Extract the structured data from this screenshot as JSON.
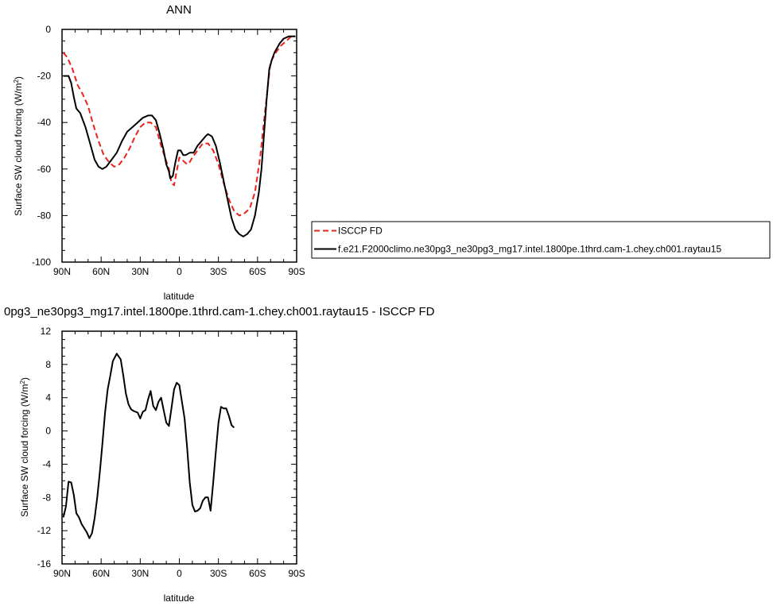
{
  "chart_data": [
    {
      "type": "line",
      "title": "ANN",
      "xlabel": "latitude",
      "ylabel_main": "Surface SW cloud forcing (W/m",
      "ylabel_sup": "2",
      "ylabel_tail": ")",
      "xlim": [
        90,
        -90
      ],
      "ylim": [
        -100,
        0
      ],
      "x_ticks": [
        {
          "value": 90,
          "label": "90N"
        },
        {
          "value": 60,
          "label": "60N"
        },
        {
          "value": 30,
          "label": "30N"
        },
        {
          "value": 0,
          "label": "0"
        },
        {
          "value": -30,
          "label": "30S"
        },
        {
          "value": -60,
          "label": "60S"
        },
        {
          "value": -90,
          "label": "90S"
        }
      ],
      "y_ticks": [
        {
          "value": 0,
          "label": "0"
        },
        {
          "value": -20,
          "label": "-20"
        },
        {
          "value": -40,
          "label": "-40"
        },
        {
          "value": -60,
          "label": "-60"
        },
        {
          "value": -80,
          "label": "-80"
        },
        {
          "value": -100,
          "label": "-100"
        }
      ],
      "legend": "right",
      "series": [
        {
          "name": "ISCCP FD",
          "color": "#e8231c",
          "dash": "dashed",
          "points": [
            [
              89,
              -10
            ],
            [
              86,
              -12
            ],
            [
              82,
              -17
            ],
            [
              78,
              -24
            ],
            [
              74,
              -28
            ],
            [
              70,
              -33
            ],
            [
              66,
              -41
            ],
            [
              62,
              -48
            ],
            [
              58,
              -54
            ],
            [
              54,
              -57
            ],
            [
              50,
              -59
            ],
            [
              46,
              -58
            ],
            [
              42,
              -55
            ],
            [
              38,
              -51
            ],
            [
              34,
              -46
            ],
            [
              30,
              -42
            ],
            [
              26,
              -40
            ],
            [
              22,
              -40
            ],
            [
              18,
              -42
            ],
            [
              14,
              -50
            ],
            [
              11,
              -55
            ],
            [
              8,
              -60
            ],
            [
              6,
              -66
            ],
            [
              4,
              -67
            ],
            [
              2,
              -61
            ],
            [
              0,
              -55
            ],
            [
              -2,
              -56
            ],
            [
              -4,
              -57
            ],
            [
              -6,
              -58
            ],
            [
              -8,
              -57
            ],
            [
              -10,
              -55
            ],
            [
              -14,
              -52
            ],
            [
              -18,
              -49
            ],
            [
              -22,
              -49
            ],
            [
              -26,
              -52
            ],
            [
              -30,
              -58
            ],
            [
              -34,
              -66
            ],
            [
              -38,
              -73
            ],
            [
              -42,
              -78
            ],
            [
              -46,
              -80
            ],
            [
              -50,
              -79
            ],
            [
              -54,
              -77
            ],
            [
              -58,
              -70
            ],
            [
              -62,
              -55
            ],
            [
              -66,
              -34
            ],
            [
              -70,
              -14
            ],
            [
              -74,
              -10
            ],
            [
              -78,
              -7
            ],
            [
              -82,
              -5
            ],
            [
              -86,
              -3
            ],
            [
              -89,
              -3
            ]
          ]
        },
        {
          "name": "f.e21.F2000climo.ne30pg3_ne30pg3_mg17.intel.1800pe.1thrd.cam-1.chey.ch001.raytau15",
          "color": "#000000",
          "dash": "solid",
          "points": [
            [
              89,
              -20
            ],
            [
              85,
              -20
            ],
            [
              83,
              -23
            ],
            [
              81,
              -29
            ],
            [
              79,
              -34
            ],
            [
              76,
              -36
            ],
            [
              72,
              -42
            ],
            [
              68,
              -50
            ],
            [
              65,
              -56
            ],
            [
              62,
              -59
            ],
            [
              59,
              -60
            ],
            [
              56,
              -59
            ],
            [
              52,
              -56
            ],
            [
              48,
              -53
            ],
            [
              44,
              -48
            ],
            [
              40,
              -44
            ],
            [
              36,
              -42
            ],
            [
              32,
              -40
            ],
            [
              28,
              -38
            ],
            [
              24,
              -37
            ],
            [
              21,
              -37
            ],
            [
              18,
              -39
            ],
            [
              15,
              -45
            ],
            [
              12,
              -52
            ],
            [
              10,
              -58
            ],
            [
              8,
              -61
            ],
            [
              7,
              -64
            ],
            [
              5,
              -63
            ],
            [
              3,
              -57
            ],
            [
              1,
              -52
            ],
            [
              -1,
              -52
            ],
            [
              -3,
              -54
            ],
            [
              -5,
              -54
            ],
            [
              -8,
              -53
            ],
            [
              -11,
              -53
            ],
            [
              -14,
              -50
            ],
            [
              -17,
              -48
            ],
            [
              -20,
              -46
            ],
            [
              -22,
              -45
            ],
            [
              -25,
              -46
            ],
            [
              -28,
              -50
            ],
            [
              -31,
              -57
            ],
            [
              -34,
              -65
            ],
            [
              -37,
              -73
            ],
            [
              -40,
              -81
            ],
            [
              -43,
              -86
            ],
            [
              -46,
              -88
            ],
            [
              -49,
              -89
            ],
            [
              -52,
              -88
            ],
            [
              -55,
              -86
            ],
            [
              -58,
              -80
            ],
            [
              -61,
              -70
            ],
            [
              -63,
              -60
            ],
            [
              -65,
              -45
            ],
            [
              -67,
              -30
            ],
            [
              -69,
              -17
            ],
            [
              -71,
              -13
            ],
            [
              -73,
              -10
            ],
            [
              -75,
              -8
            ],
            [
              -77,
              -6
            ],
            [
              -80,
              -4
            ],
            [
              -84,
              -3
            ],
            [
              -89,
              -3
            ]
          ]
        }
      ]
    },
    {
      "type": "line",
      "title": "0pg3_ne30pg3_mg17.intel.1800pe.1thrd.cam-1.chey.ch001.raytau15 - ISCCP FD",
      "xlabel": "latitude",
      "ylabel_main": "Surface SW cloud forcing (W/m",
      "ylabel_sup": "2",
      "ylabel_tail": ")",
      "xlim": [
        90,
        -90
      ],
      "ylim": [
        -16,
        12
      ],
      "x_ticks": [
        {
          "value": 90,
          "label": "90N"
        },
        {
          "value": 60,
          "label": "60N"
        },
        {
          "value": 30,
          "label": "30N"
        },
        {
          "value": 0,
          "label": "0"
        },
        {
          "value": -30,
          "label": "30S"
        },
        {
          "value": -60,
          "label": "60S"
        },
        {
          "value": -90,
          "label": "90S"
        }
      ],
      "y_ticks": [
        {
          "value": 12,
          "label": "12"
        },
        {
          "value": 8,
          "label": "8"
        },
        {
          "value": 4,
          "label": "4"
        },
        {
          "value": 0,
          "label": "0"
        },
        {
          "value": -4,
          "label": "-4"
        },
        {
          "value": -8,
          "label": "-8"
        },
        {
          "value": -12,
          "label": "-12"
        },
        {
          "value": -16,
          "label": "-16"
        }
      ],
      "series": [
        {
          "color": "#000000",
          "dash": "solid",
          "points": [
            [
              89,
              -10.4
            ],
            [
              87,
              -9.1
            ],
            [
              85,
              -6.1
            ],
            [
              83,
              -6.2
            ],
            [
              81,
              -7.7
            ],
            [
              79,
              -9.9
            ],
            [
              77,
              -10.4
            ],
            [
              75,
              -11.2
            ],
            [
              73,
              -11.7
            ],
            [
              71,
              -12.2
            ],
            [
              69,
              -12.9
            ],
            [
              67,
              -12.3
            ],
            [
              65,
              -10.5
            ],
            [
              63,
              -8.0
            ],
            [
              61,
              -5.0
            ],
            [
              59,
              -1.5
            ],
            [
              57,
              2.2
            ],
            [
              55,
              5.0
            ],
            [
              53,
              6.6
            ],
            [
              51,
              8.4
            ],
            [
              48,
              9.3
            ],
            [
              45,
              8.6
            ],
            [
              43,
              6.7
            ],
            [
              41,
              4.5
            ],
            [
              39,
              3.2
            ],
            [
              37,
              2.6
            ],
            [
              35,
              2.4
            ],
            [
              32,
              2.2
            ],
            [
              30,
              1.5
            ],
            [
              28,
              2.3
            ],
            [
              26,
              2.5
            ],
            [
              24,
              3.8
            ],
            [
              22,
              4.8
            ],
            [
              20,
              3.0
            ],
            [
              18,
              2.5
            ],
            [
              16,
              3.5
            ],
            [
              14,
              4.0
            ],
            [
              12,
              2.5
            ],
            [
              10,
              1.0
            ],
            [
              8,
              0.6
            ],
            [
              6,
              2.8
            ],
            [
              4,
              5.0
            ],
            [
              2,
              5.8
            ],
            [
              0,
              5.5
            ],
            [
              -2,
              3.5
            ],
            [
              -4,
              1.5
            ],
            [
              -6,
              -2.0
            ],
            [
              -8,
              -6.2
            ],
            [
              -10,
              -8.9
            ],
            [
              -12,
              -9.7
            ],
            [
              -14,
              -9.6
            ],
            [
              -16,
              -9.3
            ],
            [
              -18,
              -8.4
            ],
            [
              -20,
              -8.0
            ],
            [
              -22,
              -8.0
            ],
            [
              -24,
              -9.6
            ],
            [
              -26,
              -6.2
            ],
            [
              -28,
              -2.5
            ],
            [
              -30,
              1.0
            ],
            [
              -32,
              2.9
            ],
            [
              -34,
              2.7
            ],
            [
              -36,
              2.7
            ],
            [
              -38,
              1.8
            ],
            [
              -40,
              0.7
            ],
            [
              -42,
              0.4
            ]
          ]
        }
      ]
    }
  ]
}
